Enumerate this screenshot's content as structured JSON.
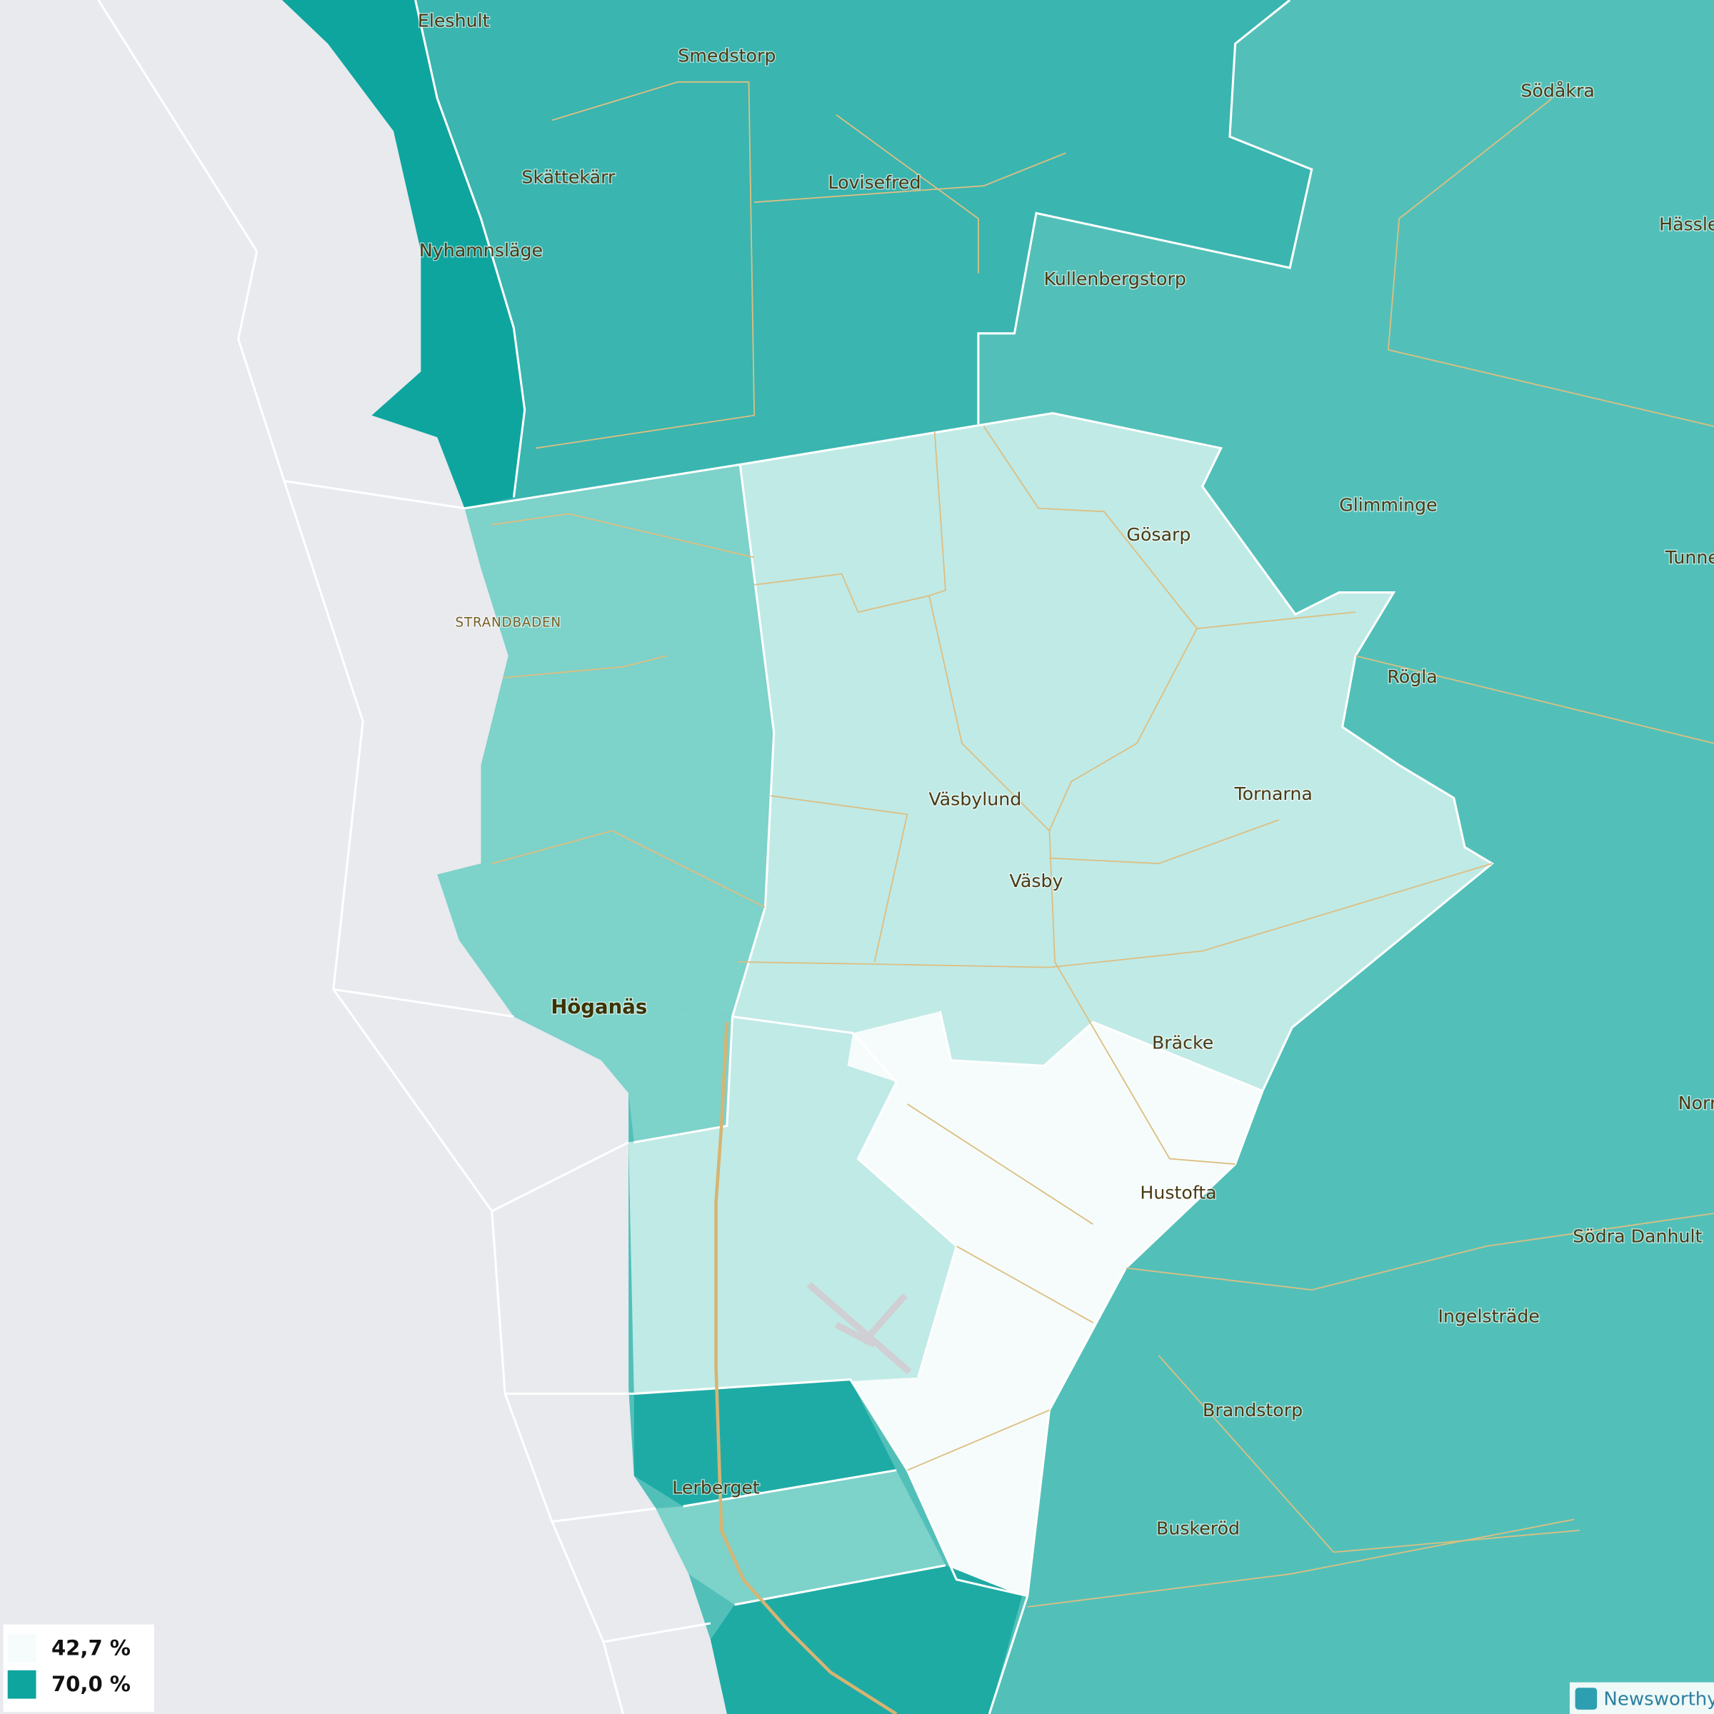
{
  "places": [
    "Eleshult",
    "Smedstorp",
    "Skättekärr",
    "Lovisefred",
    "Nyhamnsläge",
    "Södåkra",
    "Hässle",
    "Kullenbergstorp",
    "Glimminge",
    "Gösarp",
    "Tunne",
    "STRANDBADEN",
    "Rögla",
    "Tornarna",
    "Väsbylund",
    "Väsby",
    "Höganäs",
    "Bräcke",
    "Norr",
    "Hustofta",
    "Södra Danhult",
    "Ingelsträde",
    "Brandstorp",
    "Lerberget",
    "Buskeröd"
  ],
  "legend": [
    {
      "label": "42,7 %",
      "color": "#f6fcfb"
    },
    {
      "label": "70,0 %",
      "color": "#0ea59f"
    }
  ],
  "brand": "Newsworthy"
}
